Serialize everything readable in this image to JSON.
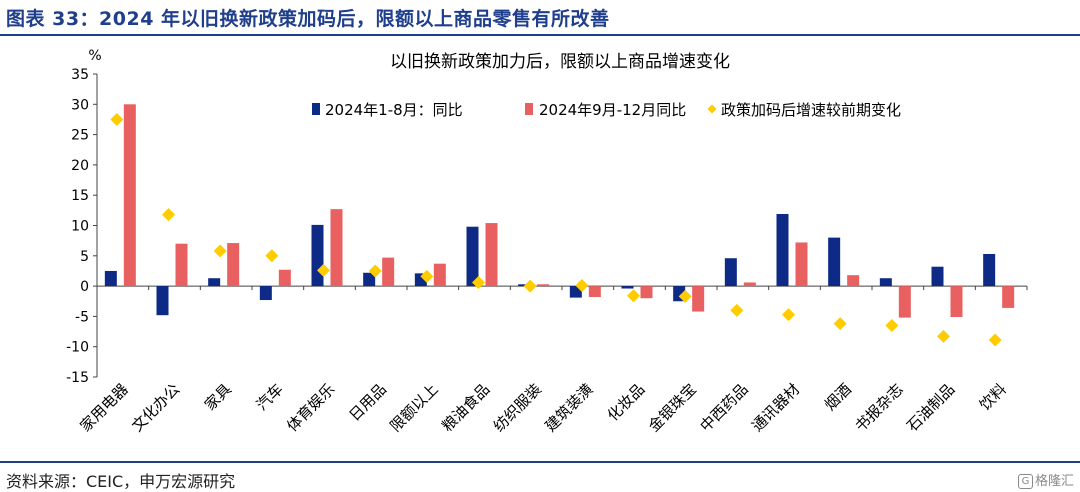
{
  "header": {
    "title": "图表 33：2024 年以旧换新政策加码后，限额以上商品零售有所改善"
  },
  "footer": {
    "source": "资料来源：CEIC，申万宏源研究",
    "watermark": "格隆汇"
  },
  "colors": {
    "header": "#1f3e8c",
    "series1": "#0c2a86",
    "series2": "#e8605f",
    "series3": "#ffcc00"
  },
  "chart_data": {
    "type": "bar",
    "title": "以旧换新政策加力后，限额以上商品增速变化",
    "ylabel": "%",
    "ylim": [
      -15,
      35
    ],
    "yticks": [
      35,
      30,
      25,
      20,
      15,
      10,
      5,
      0,
      -5,
      -10,
      -15
    ],
    "legend_position": "top",
    "categories": [
      "家用电器",
      "文化办公",
      "家具",
      "汽车",
      "体育娱乐",
      "日用品",
      "限额以上",
      "粮油食品",
      "纺织服装",
      "建筑装潢",
      "化妆品",
      "金银珠宝",
      "中西药品",
      "通讯器材",
      "烟酒",
      "书报杂志",
      "石油制品",
      "饮料"
    ],
    "series": [
      {
        "name": "2024年1-8月：同比",
        "type": "bar",
        "values": [
          2.5,
          -4.8,
          1.3,
          -2.3,
          10.1,
          2.2,
          2.1,
          9.8,
          0.3,
          -1.9,
          -0.4,
          -2.5,
          4.6,
          11.9,
          8.0,
          1.3,
          3.2,
          5.3
        ]
      },
      {
        "name": "2024年9月-12月同比",
        "type": "bar",
        "values": [
          30.0,
          7.0,
          7.1,
          2.7,
          12.7,
          4.7,
          3.7,
          10.4,
          0.3,
          -1.8,
          -2.0,
          -4.2,
          0.6,
          7.2,
          1.8,
          -5.2,
          -5.1,
          -3.6
        ]
      },
      {
        "name": "政策加码后增速较前期变化",
        "type": "scatter",
        "values": [
          27.5,
          11.8,
          5.8,
          5.0,
          2.6,
          2.5,
          1.6,
          0.6,
          0.0,
          0.1,
          -1.6,
          -1.7,
          -4.0,
          -4.7,
          -6.2,
          -6.5,
          -8.3,
          -8.9
        ]
      }
    ]
  }
}
